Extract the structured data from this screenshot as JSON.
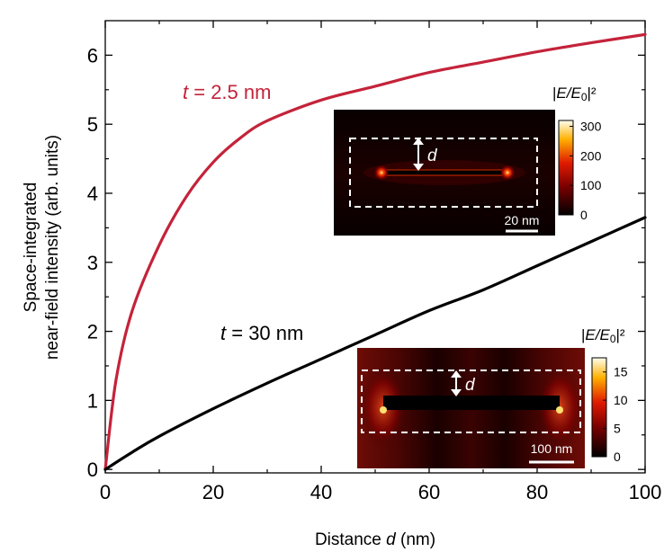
{
  "chart_data": {
    "type": "line",
    "xlabel": {
      "prefix": "Distance ",
      "var": "d",
      "suffix": " (nm)"
    },
    "ylabel_lines": [
      "Space-integrated",
      "near-field intensity (arb. units)"
    ],
    "xlim": [
      0,
      100
    ],
    "ylim": [
      -0.05,
      6.5
    ],
    "xticks": [
      0,
      20,
      40,
      60,
      80,
      100
    ],
    "yticks": [
      0,
      1,
      2,
      3,
      4,
      5,
      6
    ],
    "grid": false,
    "series": [
      {
        "label_var": "t",
        "label_rest": " = 2.5 nm",
        "color": "#c4233a",
        "x": [
          0,
          2,
          5,
          10,
          15,
          20,
          25,
          30,
          40,
          50,
          60,
          70,
          80,
          90,
          100
        ],
        "y": [
          0,
          1.3,
          2.3,
          3.25,
          3.95,
          4.45,
          4.8,
          5.05,
          5.35,
          5.55,
          5.75,
          5.9,
          6.05,
          6.18,
          6.3
        ]
      },
      {
        "label_var": "t",
        "label_rest": " = 30 nm",
        "color": "#000000",
        "x": [
          0,
          5,
          10,
          20,
          30,
          40,
          50,
          60,
          70,
          80,
          90,
          100
        ],
        "y": [
          0,
          0.25,
          0.48,
          0.88,
          1.25,
          1.6,
          1.95,
          2.3,
          2.6,
          2.95,
          3.3,
          3.65
        ]
      }
    ],
    "insets": [
      {
        "colorbar_title_pre": "|",
        "colorbar_title_var": "E/E",
        "colorbar_title_sub": "0",
        "colorbar_title_post": "|²",
        "colorbar_ticks": [
          0,
          100,
          200,
          300
        ],
        "colorbar_max": 320,
        "scale_bar": "20 nm",
        "gap_label": "d"
      },
      {
        "colorbar_title_pre": "|",
        "colorbar_title_var": "E/E",
        "colorbar_title_sub": "0",
        "colorbar_title_post": "|²",
        "colorbar_ticks": [
          0,
          5,
          10,
          15
        ],
        "colorbar_max": 17.5,
        "scale_bar": "100 nm",
        "gap_label": "d"
      }
    ]
  }
}
